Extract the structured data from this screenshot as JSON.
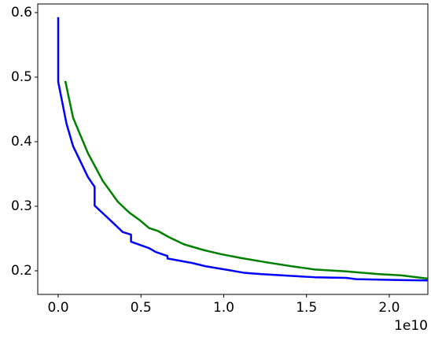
{
  "chart_data": {
    "type": "line",
    "x_offset_label": "1e10",
    "xlim": [
      -0.1235,
      2.233
    ],
    "ylim": [
      0.1634,
      0.6134
    ],
    "xticks": [
      {
        "value": 0,
        "label": "0.0"
      },
      {
        "value": 0.5,
        "label": "0.5"
      },
      {
        "value": 1,
        "label": "1.0"
      },
      {
        "value": 1.5,
        "label": "1.5"
      },
      {
        "value": 2,
        "label": "2.0"
      }
    ],
    "yticks": [
      0.2,
      0.3,
      0.4,
      0.5,
      0.6
    ],
    "series": [
      {
        "color": "#0000ff",
        "x": [
          0,
          0,
          0.05,
          0.09,
          0.18,
          0.22,
          0.22,
          0.32,
          0.39,
          0.44,
          0.44,
          0.55,
          0.59,
          0.66,
          0.66,
          0.81,
          0.89,
          1.03,
          1.12,
          1.22,
          1.41,
          1.55,
          1.74,
          1.8,
          2.0,
          2.23
        ],
        "values": [
          0.593,
          0.493,
          0.428,
          0.393,
          0.345,
          0.33,
          0.301,
          0.277,
          0.26,
          0.256,
          0.245,
          0.235,
          0.229,
          0.223,
          0.219,
          0.212,
          0.207,
          0.201,
          0.197,
          0.195,
          0.192,
          0.19,
          0.189,
          0.187,
          0.186,
          0.185
        ]
      },
      {
        "color": "#008000",
        "x": [
          0.043,
          0.09,
          0.18,
          0.27,
          0.36,
          0.43,
          0.49,
          0.55,
          0.6,
          0.67,
          0.76,
          0.88,
          0.98,
          1.1,
          1.26,
          1.41,
          1.55,
          1.74,
          1.93,
          2.07,
          2.23
        ],
        "values": [
          0.494,
          0.437,
          0.382,
          0.339,
          0.307,
          0.29,
          0.279,
          0.266,
          0.262,
          0.252,
          0.241,
          0.232,
          0.226,
          0.22,
          0.213,
          0.207,
          0.202,
          0.199,
          0.195,
          0.193,
          0.188
        ]
      }
    ]
  }
}
